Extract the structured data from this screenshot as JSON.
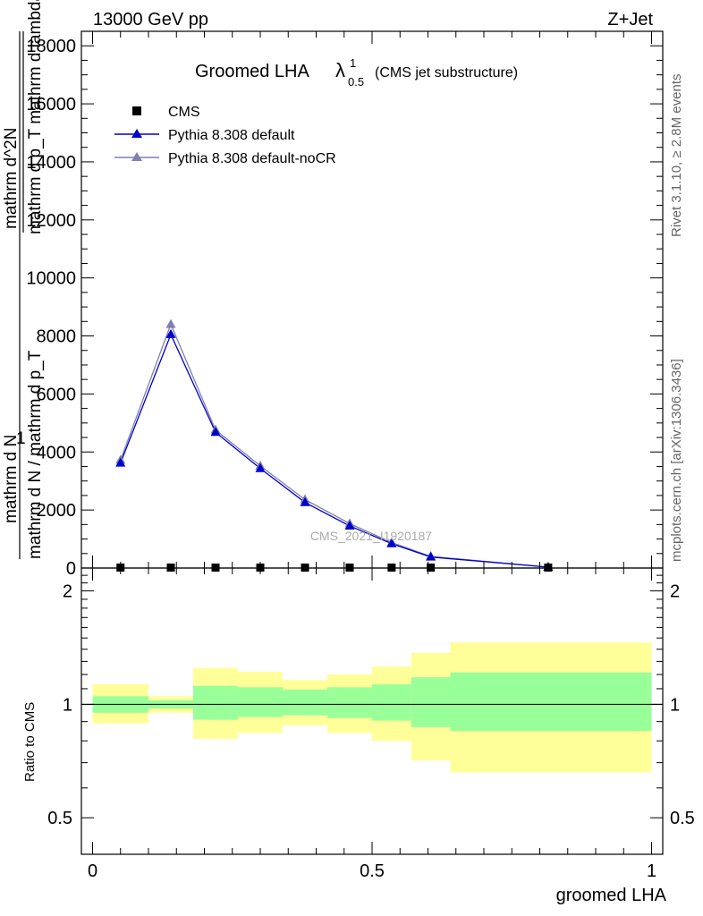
{
  "header": {
    "energy": "13000 GeV pp",
    "process": "Z+Jet"
  },
  "side": {
    "rivet": "Rivet 3.1.10, ≥ 2.8M events",
    "mcplots": "mcplots.cern.ch [arXiv:1306.3436]"
  },
  "watermark": "CMS_2021_I1920187",
  "title": {
    "main": "Groomed LHA",
    "lambda": "λ",
    "sup": "1",
    "sub": "0.5",
    "note": "(CMS jet substructure)"
  },
  "ylabel_main": {
    "one": "1",
    "frac_num": "mathrm d N",
    "frac_den": "mathrm d N / mathrm d p_T",
    "deriv_num": "mathrm d^2N",
    "deriv_den": "mathrm d p_T mathrm d lambda",
    "sub_t": "T",
    "sub_t2": "T",
    "sup_2": "2"
  },
  "ylabel_ratio": "Ratio to CMS",
  "xlabel": "groomed LHA",
  "colors": {
    "pythia_default": "#0000cc",
    "pythia_nocr": "#7f7fb3",
    "band_inner": "#99ff99",
    "band_outer": "#ffff99",
    "data": "#000000"
  },
  "chart_data": {
    "type": "line",
    "x_range": [
      -0.02,
      1.02
    ],
    "main": {
      "ylim": [
        0,
        18500
      ],
      "yticks": [
        0,
        2000,
        4000,
        6000,
        8000,
        10000,
        12000,
        14000,
        16000,
        18000
      ],
      "ytick_labels": [
        "0",
        "2000",
        "4000",
        "6000",
        "8000",
        "10000",
        "12000",
        "14000",
        "16000",
        "18000"
      ],
      "series": [
        {
          "name": "CMS",
          "marker": "square",
          "x": [
            0.05,
            0.14,
            0.22,
            0.3,
            0.38,
            0.46,
            0.535,
            0.605,
            0.815
          ],
          "y": [
            0,
            0,
            0,
            0,
            0,
            0,
            0,
            0,
            0
          ]
        },
        {
          "name": "Pythia 8.308 default",
          "marker": "triangle",
          "x": [
            0.05,
            0.14,
            0.22,
            0.3,
            0.38,
            0.46,
            0.535,
            0.605,
            0.815
          ],
          "y": [
            3620,
            8050,
            4680,
            3430,
            2260,
            1450,
            840,
            380,
            30
          ]
        },
        {
          "name": "Pythia 8.308 default-noCR",
          "marker": "triangle",
          "x": [
            0.05,
            0.14,
            0.22,
            0.3,
            0.38,
            0.46,
            0.535,
            0.605,
            0.815
          ],
          "y": [
            3720,
            8400,
            4760,
            3520,
            2360,
            1530,
            880,
            400,
            32
          ]
        }
      ]
    },
    "ratio": {
      "ylim": [
        0.4,
        2.3
      ],
      "scale": "log",
      "yticks": [
        0.5,
        1,
        2
      ],
      "ytick_labels": [
        "0.5",
        "1",
        "2"
      ],
      "bands": [
        {
          "x0": 0.0,
          "x1": 0.1,
          "inner": [
            0.95,
            1.05
          ],
          "outer": [
            0.89,
            1.13
          ]
        },
        {
          "x0": 0.1,
          "x1": 0.18,
          "inner": [
            0.975,
            1.025
          ],
          "outer": [
            0.95,
            1.05
          ]
        },
        {
          "x0": 0.18,
          "x1": 0.26,
          "inner": [
            0.91,
            1.12
          ],
          "outer": [
            0.81,
            1.25
          ]
        },
        {
          "x0": 0.26,
          "x1": 0.34,
          "inner": [
            0.925,
            1.11
          ],
          "outer": [
            0.84,
            1.22
          ]
        },
        {
          "x0": 0.34,
          "x1": 0.42,
          "inner": [
            0.935,
            1.095
          ],
          "outer": [
            0.88,
            1.16
          ]
        },
        {
          "x0": 0.42,
          "x1": 0.5,
          "inner": [
            0.92,
            1.11
          ],
          "outer": [
            0.84,
            1.2
          ]
        },
        {
          "x0": 0.5,
          "x1": 0.57,
          "inner": [
            0.905,
            1.13
          ],
          "outer": [
            0.8,
            1.26
          ]
        },
        {
          "x0": 0.57,
          "x1": 0.64,
          "inner": [
            0.87,
            1.18
          ],
          "outer": [
            0.71,
            1.37
          ]
        },
        {
          "x0": 0.64,
          "x1": 1.0,
          "inner": [
            0.85,
            1.215
          ],
          "outer": [
            0.66,
            1.46
          ]
        }
      ]
    },
    "xticks": [
      0,
      0.5,
      1
    ],
    "xtick_labels": [
      "0",
      "0.5",
      "1"
    ],
    "legend_position": "top-left"
  }
}
